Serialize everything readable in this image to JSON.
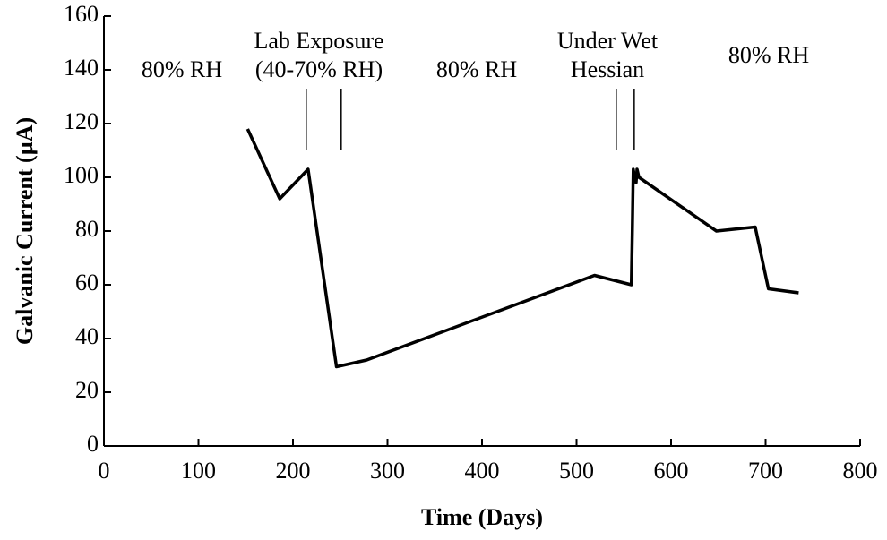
{
  "chart_data": {
    "type": "line",
    "x_label": "Time (Days)",
    "y_label": "Galvanic Current (µA)",
    "x": [
      152,
      186,
      216,
      246,
      278,
      519,
      558,
      559,
      560,
      561,
      563,
      564,
      566,
      648,
      689,
      703,
      735
    ],
    "series": [
      {
        "color": "#000000",
        "values": [
          118,
          92,
          103,
          29.5,
          32,
          63.5,
          60,
          80,
          103,
          101,
          98,
          103,
          100,
          80,
          81.5,
          58.5,
          57
        ]
      }
    ],
    "xlim": [
      0,
      800
    ],
    "xticks": [
      0,
      100,
      200,
      300,
      400,
      500,
      600,
      700,
      800
    ],
    "ylim": [
      0,
      160
    ],
    "yticks": [
      0,
      20,
      40,
      60,
      80,
      100,
      120,
      140,
      160
    ],
    "grid": false,
    "annotations": [
      "80% RH",
      "Lab Exposure",
      "(40-70% RH)",
      "80% RH",
      "Under Wet",
      "Hessian",
      "80% RH"
    ],
    "event_lines": [
      214,
      251,
      542,
      561
    ],
    "event_line_range": [
      110,
      133
    ]
  }
}
